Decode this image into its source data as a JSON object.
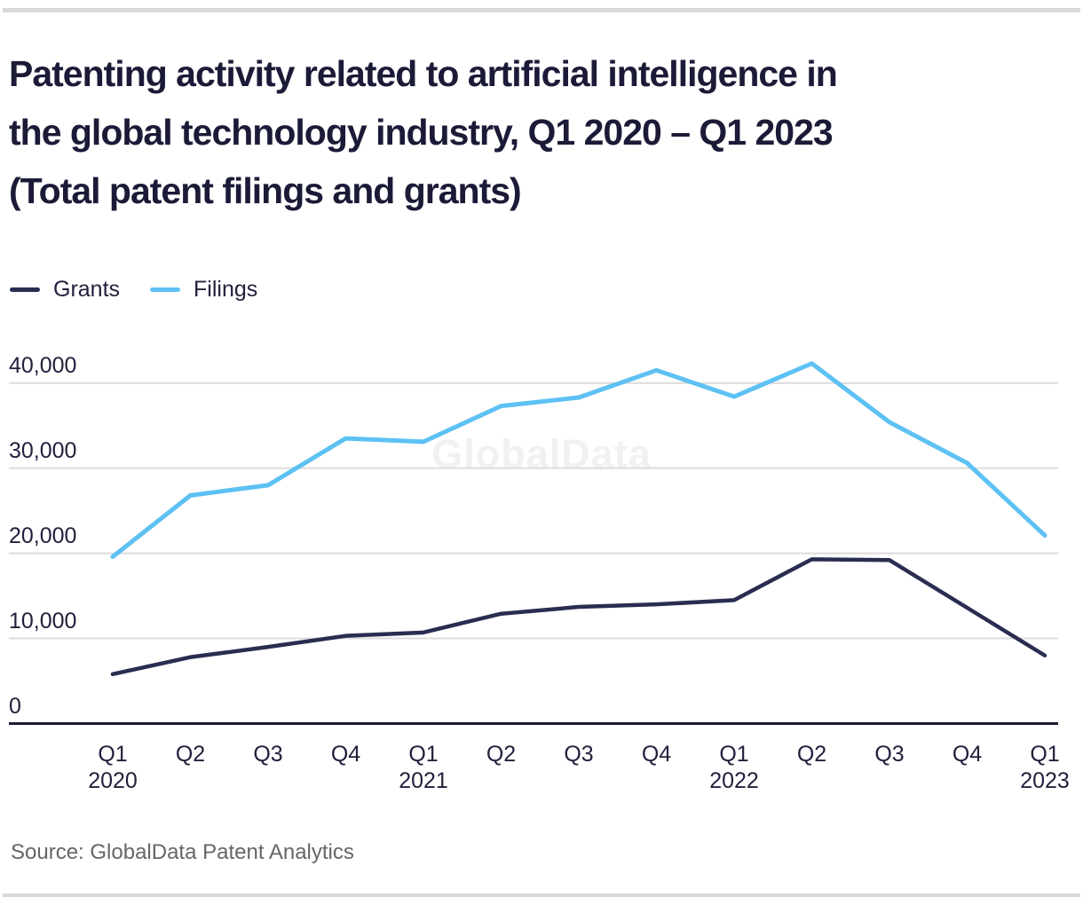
{
  "page": {
    "title_lines": [
      "Patenting activity related to artificial intelligence in",
      "the global technology industry, Q1 2020 – Q1 2023",
      "(Total patent filings and grants)"
    ],
    "watermark": "GlobalData",
    "source": "Source: GlobalData Patent Analytics"
  },
  "colors": {
    "grants": "#2A2D51",
    "filings": "#5DC1F3",
    "title_text": "#1B1B38",
    "axis_text": "#21213D",
    "gridline": "#DCDCDC",
    "axis_line": "#1A1A32",
    "watermark_text": "#F1F1F1",
    "source_text": "#666666",
    "divider": "#D9D9D9"
  },
  "legend": [
    {
      "label": "Grants",
      "color_key": "grants"
    },
    {
      "label": "Filings",
      "color_key": "filings"
    }
  ],
  "chart_data": {
    "type": "line",
    "title": "Patenting activity related to artificial intelligence in the global technology industry, Q1 2020 – Q1 2023 (Total patent filings and grants)",
    "categories": [
      "Q1 2020",
      "Q2 2020",
      "Q3 2020",
      "Q4 2020",
      "Q1 2021",
      "Q2 2021",
      "Q3 2021",
      "Q4 2021",
      "Q1 2022",
      "Q2 2022",
      "Q3 2022",
      "Q4 2022",
      "Q1 2023"
    ],
    "x_ticks": [
      {
        "label": "Q1",
        "year": "2020"
      },
      {
        "label": "Q2"
      },
      {
        "label": "Q3"
      },
      {
        "label": "Q4"
      },
      {
        "label": "Q1",
        "year": "2021"
      },
      {
        "label": "Q2"
      },
      {
        "label": "Q3"
      },
      {
        "label": "Q4"
      },
      {
        "label": "Q1",
        "year": "2022"
      },
      {
        "label": "Q2"
      },
      {
        "label": "Q3"
      },
      {
        "label": "Q4"
      },
      {
        "label": "Q1",
        "year": "2023"
      }
    ],
    "series": [
      {
        "name": "Grants",
        "color_key": "grants",
        "values": [
          5800,
          7800,
          9000,
          10300,
          10700,
          12900,
          13700,
          14000,
          14500,
          19300,
          19200,
          13600,
          8000
        ]
      },
      {
        "name": "Filings",
        "color_key": "filings",
        "values": [
          19600,
          26800,
          28000,
          33500,
          33100,
          37300,
          38300,
          41500,
          38400,
          42300,
          35400,
          30600,
          22100
        ]
      }
    ],
    "ylim": [
      0,
      40000
    ],
    "yticks": [
      0,
      10000,
      20000,
      30000,
      40000
    ],
    "ytick_labels": [
      "0",
      "10,000",
      "20,000",
      "30,000",
      "40,000"
    ],
    "grid": "horizontal",
    "legend_position": "top-left",
    "xlabel": "",
    "ylabel": ""
  }
}
